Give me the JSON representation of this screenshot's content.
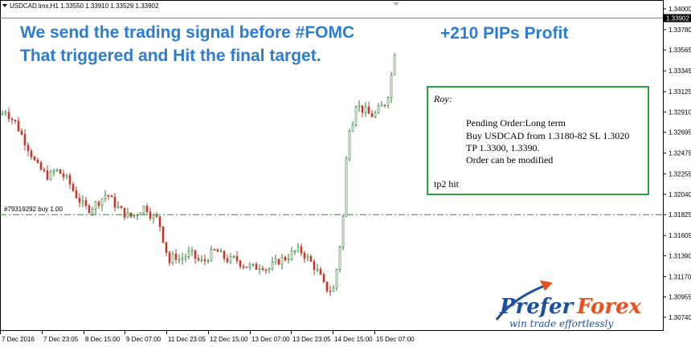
{
  "chart_header": {
    "symbol_line": "USDCAD.lmx,H1  1.33550 1.33910 1.33529 1.33902"
  },
  "headline": {
    "line1": "We send the trading signal before #FOMC",
    "line2": "That triggered and Hit the final target.",
    "profit": "+210 PIPs Profit"
  },
  "order_line": {
    "label": "#79319292 buy 1.00",
    "price": 1.31825,
    "color": "#2e8b2e"
  },
  "signal_note": {
    "author": "Roy:",
    "lines": [
      "Pending Order:Long term",
      "Buy USDCAD from 1.3180-82 SL 1.3020",
      "TP 1.3300, 1.3390.",
      "Order can be modified"
    ],
    "status": "tp2 hit",
    "border_color": "#2ea043"
  },
  "logo": {
    "main_a": "Prefer",
    "main_b": "Forex",
    "tagline": "win trade effortlessly",
    "color_a": "#1d4fa0",
    "color_b": "#e8511f"
  },
  "current_price": {
    "label": "1.33902",
    "value": 1.33902
  },
  "colors": {
    "bull": "#2e7d32",
    "bear": "#c0392b",
    "accent_blue": "#2e7ccf"
  },
  "chart_data": {
    "type": "candlestick",
    "y_ticks": [
      "1.34000",
      "1.33780",
      "1.33565",
      "1.33345",
      "1.33125",
      "1.32910",
      "1.32695",
      "1.32475",
      "1.32255",
      "1.32040",
      "1.31825",
      "1.31605",
      "1.31390",
      "1.31170",
      "1.30955",
      "1.30740"
    ],
    "x_ticks": [
      "7 Dec 2016",
      "7 Dec 23:05",
      "8 Dec 15:00",
      "9 Dec 07:00",
      "11 Dec 23:05",
      "12 Dec 15:00",
      "13 Dec 07:00",
      "13 Dec 23:05",
      "14 Dec 15:00",
      "15 Dec 07:00"
    ],
    "ylim": [
      1.3068,
      1.3412
    ],
    "close_path": [
      [
        0,
        1.3288
      ],
      [
        6,
        1.3293
      ],
      [
        12,
        1.3285
      ],
      [
        18,
        1.328
      ],
      [
        24,
        1.327
      ],
      [
        30,
        1.326
      ],
      [
        36,
        1.325
      ],
      [
        44,
        1.3235
      ],
      [
        52,
        1.3228
      ],
      [
        60,
        1.3222
      ],
      [
        68,
        1.323
      ],
      [
        76,
        1.3225
      ],
      [
        84,
        1.3218
      ],
      [
        92,
        1.3205
      ],
      [
        100,
        1.3195
      ],
      [
        108,
        1.3188
      ],
      [
        116,
        1.3192
      ],
      [
        124,
        1.3198
      ],
      [
        132,
        1.3205
      ],
      [
        140,
        1.3195
      ],
      [
        148,
        1.3188
      ],
      [
        156,
        1.3182
      ],
      [
        164,
        1.318
      ],
      [
        172,
        1.3186
      ],
      [
        180,
        1.3192
      ],
      [
        188,
        1.318
      ],
      [
        196,
        1.3178
      ],
      [
        204,
        1.315
      ],
      [
        210,
        1.3132
      ],
      [
        216,
        1.314
      ],
      [
        222,
        1.3135
      ],
      [
        228,
        1.3138
      ],
      [
        236,
        1.3142
      ],
      [
        244,
        1.3135
      ],
      [
        252,
        1.3132
      ],
      [
        260,
        1.314
      ],
      [
        268,
        1.3145
      ],
      [
        276,
        1.3138
      ],
      [
        284,
        1.3134
      ],
      [
        292,
        1.3136
      ],
      [
        300,
        1.313
      ],
      [
        308,
        1.3128
      ],
      [
        316,
        1.3126
      ],
      [
        324,
        1.313
      ],
      [
        332,
        1.3124
      ],
      [
        340,
        1.313
      ],
      [
        348,
        1.3135
      ],
      [
        356,
        1.3137
      ],
      [
        364,
        1.3143
      ],
      [
        372,
        1.3145
      ],
      [
        380,
        1.3138
      ],
      [
        388,
        1.313
      ],
      [
        396,
        1.312
      ],
      [
        402,
        1.3108
      ],
      [
        408,
        1.3102
      ],
      [
        414,
        1.3104
      ],
      [
        418,
        1.3125
      ],
      [
        422,
        1.315
      ],
      [
        426,
        1.318
      ],
      [
        430,
        1.324
      ],
      [
        434,
        1.3275
      ],
      [
        438,
        1.3282
      ],
      [
        442,
        1.33
      ],
      [
        448,
        1.3294
      ],
      [
        454,
        1.3292
      ],
      [
        460,
        1.3287
      ],
      [
        466,
        1.3289
      ],
      [
        472,
        1.3295
      ],
      [
        478,
        1.33
      ],
      [
        482,
        1.331
      ],
      [
        486,
        1.333
      ],
      [
        490,
        1.3355
      ],
      [
        494,
        1.339
      ]
    ],
    "last_close": 1.33902
  }
}
